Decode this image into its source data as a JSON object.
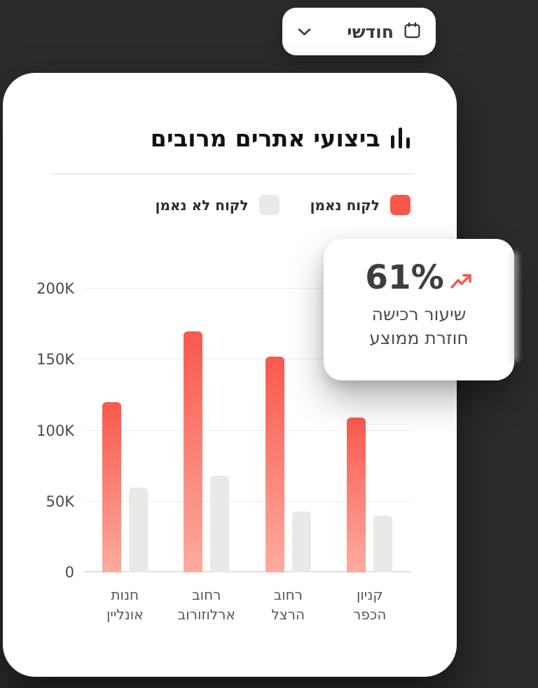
{
  "colors": {
    "background": "#2b2b2b",
    "card": "#ffffff",
    "accent_red": "#f85b4f",
    "bar_red_top": "#f9594d",
    "bar_red_bottom": "#fcab9f",
    "bar_gray": "#eae9e8",
    "grid": "#ececec"
  },
  "period_dropdown": {
    "label": "חודשי",
    "icons": [
      "calendar-icon",
      "chevron-down-icon"
    ]
  },
  "card": {
    "title": "ביצועי אתרים מרובים",
    "title_icon": "bar-chart-icon"
  },
  "legend": {
    "items": [
      {
        "label": "לקוח נאמן",
        "color": "#f8584c"
      },
      {
        "label": "לקוח לא נאמן",
        "color": "#eae9e8"
      }
    ]
  },
  "stat_card": {
    "value": "61%",
    "trend_icon": "trend-up-icon",
    "description_line1": "שיעור רכישה",
    "description_line2": "חוזרת ממוצע"
  },
  "chart_data": {
    "type": "bar",
    "title": "ביצועי אתרים מרובים",
    "categories": [
      "חנות\nאונליין",
      "רחוב\nארלוזורוב",
      "רחוב\nהרצל",
      "קניון\nהכפר"
    ],
    "series": [
      {
        "name": "לקוח נאמן",
        "color_top": "#f9594d",
        "color_bottom": "#fcab9f",
        "values": [
          120000,
          170000,
          152000,
          109000
        ]
      },
      {
        "name": "לקוח לא נאמן",
        "color": "#eae9e8",
        "values": [
          60000,
          68000,
          43000,
          40000
        ]
      }
    ],
    "ylim": [
      0,
      200000
    ],
    "yticks": [
      {
        "value": 0,
        "label": "0"
      },
      {
        "value": 50000,
        "label": "50K"
      },
      {
        "value": 100000,
        "label": "100K"
      },
      {
        "value": 150000,
        "label": "150K"
      },
      {
        "value": 200000,
        "label": "200K"
      }
    ],
    "grid": true,
    "legend_position": "top"
  }
}
